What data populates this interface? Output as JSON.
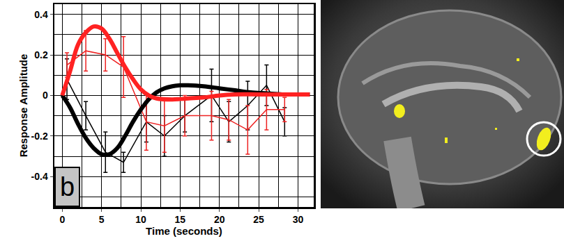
{
  "chart_data": {
    "type": "line",
    "panel_label": "b",
    "x_label": "Time (seconds)",
    "y_label": "Response Amplitude",
    "xlim": [
      -1,
      32
    ],
    "ylim": [
      -0.55,
      0.45
    ],
    "xticks": [
      0,
      5,
      10,
      15,
      20,
      25,
      30
    ],
    "yticks": [
      -0.4,
      -0.2,
      0,
      0.2,
      0.4
    ],
    "grid": true,
    "series": [
      {
        "color": "#000000",
        "line_style": "thin",
        "marker": "none",
        "x": [
          0.6,
          3,
          5.5,
          7.8,
          10.7,
          13,
          15.6,
          19,
          21.2,
          23.6,
          26,
          28.3
        ],
        "values": [
          0.08,
          -0.1,
          -0.28,
          -0.33,
          -0.13,
          -0.2,
          -0.1,
          0.0,
          -0.13,
          -0.05,
          0.05,
          -0.13
        ],
        "error": [
          0.1,
          0.07,
          0.1,
          0.05,
          0.1,
          0.1,
          0.08,
          0.13,
          0.1,
          0.12,
          0.1,
          0.07
        ]
      },
      {
        "color": "#ee2222",
        "line_style": "thin",
        "marker": "none",
        "x": [
          0.6,
          3,
          5.5,
          7.8,
          10.7,
          13,
          15.6,
          19,
          21.2,
          23.6,
          26,
          28.3
        ],
        "values": [
          0.15,
          0.22,
          0.2,
          0.14,
          -0.13,
          -0.15,
          -0.1,
          -0.1,
          -0.12,
          -0.17,
          -0.07,
          -0.07
        ],
        "error": [
          0.06,
          0.1,
          0.08,
          0.15,
          0.14,
          0.13,
          0.1,
          0.12,
          0.1,
          0.12,
          0.1,
          0.06
        ]
      },
      {
        "color": "#000000",
        "line_style": "thick",
        "marker": "none",
        "x": [
          0,
          1,
          2,
          3,
          4,
          5,
          6,
          7,
          8,
          9,
          10,
          11,
          12,
          13,
          14,
          15,
          16,
          18,
          20,
          22,
          24,
          26,
          28,
          30,
          31.5
        ],
        "values": [
          0,
          -0.06,
          -0.14,
          -0.21,
          -0.26,
          -0.29,
          -0.29,
          -0.26,
          -0.2,
          -0.13,
          -0.07,
          -0.02,
          0.015,
          0.035,
          0.045,
          0.05,
          0.05,
          0.045,
          0.035,
          0.025,
          0.015,
          0.01,
          0.005,
          0.005,
          0.005
        ]
      },
      {
        "color": "#ff2222",
        "line_style": "thick",
        "marker": "none",
        "x": [
          0,
          1,
          2,
          3,
          4,
          5,
          6,
          7,
          8,
          9,
          10,
          11,
          12,
          14,
          16,
          18,
          20,
          22,
          25,
          28,
          30,
          31.5
        ],
        "values": [
          0,
          0.12,
          0.25,
          0.31,
          0.34,
          0.33,
          0.28,
          0.21,
          0.14,
          0.08,
          0.03,
          0.0,
          -0.015,
          -0.02,
          -0.015,
          -0.01,
          0.0,
          0.005,
          0.005,
          0.005,
          0.005,
          0.005
        ]
      }
    ]
  }
}
